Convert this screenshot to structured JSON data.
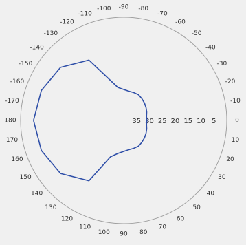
{
  "chart_data": {
    "type": "line",
    "projection": "polar",
    "angle_ticks": [
      "-110",
      "-100",
      "-90",
      "-80",
      "-70",
      "-60",
      "-50",
      "-40",
      "-30",
      "-20",
      "-10",
      "0",
      "10",
      "20",
      "30",
      "40",
      "50",
      "60",
      "70",
      "80",
      "90",
      "100",
      "110",
      "120",
      "130",
      "140",
      "150",
      "160",
      "170",
      "180",
      "-170",
      "-160",
      "-150",
      "-140",
      "-130",
      "-120"
    ],
    "radial_tick_labels": [
      "35",
      "30",
      "25",
      "20",
      "15",
      "10",
      "5"
    ],
    "radial_range": [
      0,
      40
    ],
    "radial_direction": "inward",
    "grid": false,
    "series": [
      {
        "color": "#2f4fa8",
        "theta": [
          -180,
          -160,
          -140,
          -120,
          -100,
          -90,
          -80,
          -70,
          -60,
          -50,
          -40,
          -30,
          -20,
          -10,
          0,
          10,
          20,
          30,
          40,
          50,
          60,
          70,
          80,
          90,
          100,
          110,
          120,
          140,
          160,
          180
        ],
        "r": [
          5,
          6,
          8,
          13,
          27,
          28,
          28.5,
          28.5,
          28.5,
          29,
          29.5,
          30,
          30.5,
          31,
          31,
          31,
          30.5,
          30,
          29.5,
          29,
          28.5,
          28.5,
          28.5,
          28,
          27,
          25,
          13,
          8,
          6,
          5
        ]
      }
    ]
  }
}
